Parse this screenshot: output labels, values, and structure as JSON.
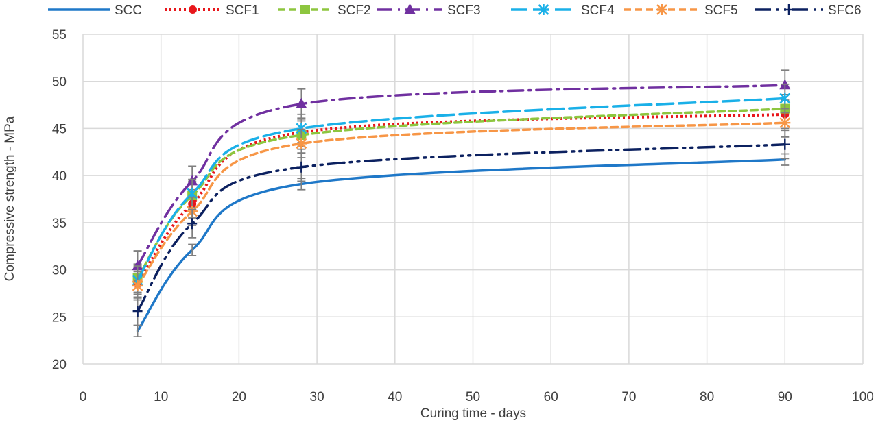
{
  "chart_data": {
    "type": "line",
    "title": "",
    "xlabel": "Curing time - days",
    "ylabel": "Compressive strength - MPa",
    "xlim": [
      0,
      100
    ],
    "ylim": [
      20,
      55
    ],
    "xticks": [
      0,
      10,
      20,
      30,
      40,
      50,
      60,
      70,
      80,
      90,
      100
    ],
    "yticks": [
      20,
      25,
      30,
      35,
      40,
      45,
      50,
      55
    ],
    "grid": true,
    "legend_position": "top",
    "x": [
      7,
      14,
      28,
      90
    ],
    "series": [
      {
        "name": "SCC",
        "values": [
          23.5,
          32.1,
          39.1,
          41.7
        ],
        "error": 0.6,
        "color": "#1f78c8",
        "dash": "solid",
        "marker": "none"
      },
      {
        "name": "SCF1",
        "values": [
          28.5,
          37.0,
          44.6,
          46.5
        ],
        "error": 1.5,
        "color": "#e8161b",
        "dash": "dotted",
        "marker": "circle"
      },
      {
        "name": "SCF2",
        "values": [
          29.1,
          37.9,
          44.3,
          47.1
        ],
        "error": 1.5,
        "color": "#8dc63f",
        "dash": "dashed",
        "marker": "square"
      },
      {
        "name": "SCF3",
        "values": [
          30.4,
          39.4,
          47.6,
          49.6
        ],
        "error": 1.6,
        "color": "#7030a0",
        "dash": "long-dash-dot",
        "marker": "triangle"
      },
      {
        "name": "SCF4",
        "values": [
          28.9,
          38.1,
          45.0,
          48.2
        ],
        "error": 1.5,
        "color": "#1ab0e8",
        "dash": "long-dash",
        "marker": "x-star"
      },
      {
        "name": "SCF5",
        "values": [
          28.3,
          36.2,
          43.4,
          45.6
        ],
        "error": 1.5,
        "color": "#f79646",
        "dash": "dashed",
        "marker": "asterisk"
      },
      {
        "name": "SFC6",
        "values": [
          25.6,
          34.9,
          40.9,
          43.3
        ],
        "error": 1.5,
        "color": "#0c2160",
        "dash": "long-dash-dot-dot",
        "marker": "plus"
      }
    ]
  }
}
